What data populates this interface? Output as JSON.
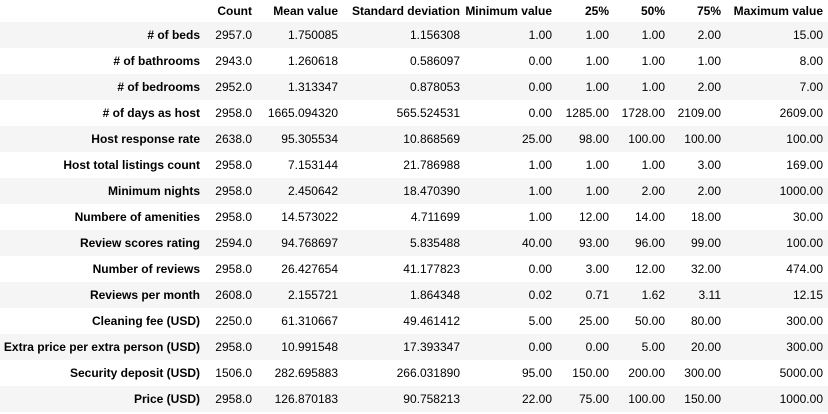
{
  "table": {
    "index_header": "",
    "columns": [
      "Count",
      "Mean value",
      "Standard deviation",
      "Minimum value",
      "25%",
      "50%",
      "75%",
      "Maximum value"
    ],
    "rows": [
      {
        "label": "# of beds",
        "cells": [
          "2957.0",
          "1.750085",
          "1.156308",
          "1.00",
          "1.00",
          "1.00",
          "2.00",
          "15.00"
        ]
      },
      {
        "label": "# of bathrooms",
        "cells": [
          "2943.0",
          "1.260618",
          "0.586097",
          "0.00",
          "1.00",
          "1.00",
          "1.00",
          "8.00"
        ]
      },
      {
        "label": "# of bedrooms",
        "cells": [
          "2952.0",
          "1.313347",
          "0.878053",
          "0.00",
          "1.00",
          "1.00",
          "2.00",
          "7.00"
        ]
      },
      {
        "label": "# of days as host",
        "cells": [
          "2958.0",
          "1665.094320",
          "565.524531",
          "0.00",
          "1285.00",
          "1728.00",
          "2109.00",
          "2609.00"
        ]
      },
      {
        "label": "Host response rate",
        "cells": [
          "2638.0",
          "95.305534",
          "10.868569",
          "25.00",
          "98.00",
          "100.00",
          "100.00",
          "100.00"
        ]
      },
      {
        "label": "Host total listings count",
        "cells": [
          "2958.0",
          "7.153144",
          "21.786988",
          "1.00",
          "1.00",
          "1.00",
          "3.00",
          "169.00"
        ]
      },
      {
        "label": "Minimum nights",
        "cells": [
          "2958.0",
          "2.450642",
          "18.470390",
          "1.00",
          "1.00",
          "2.00",
          "2.00",
          "1000.00"
        ]
      },
      {
        "label": "Numbere of amenities",
        "cells": [
          "2958.0",
          "14.573022",
          "4.711699",
          "1.00",
          "12.00",
          "14.00",
          "18.00",
          "30.00"
        ]
      },
      {
        "label": "Review scores rating",
        "cells": [
          "2594.0",
          "94.768697",
          "5.835488",
          "40.00",
          "93.00",
          "96.00",
          "99.00",
          "100.00"
        ]
      },
      {
        "label": "Number of reviews",
        "cells": [
          "2958.0",
          "26.427654",
          "41.177823",
          "0.00",
          "3.00",
          "12.00",
          "32.00",
          "474.00"
        ]
      },
      {
        "label": "Reviews per month",
        "cells": [
          "2608.0",
          "2.155721",
          "1.864348",
          "0.02",
          "0.71",
          "1.62",
          "3.11",
          "12.15"
        ]
      },
      {
        "label": "Cleaning fee (USD)",
        "cells": [
          "2250.0",
          "61.310667",
          "49.461412",
          "5.00",
          "25.00",
          "50.00",
          "80.00",
          "300.00"
        ]
      },
      {
        "label": "Extra price per extra person (USD)",
        "cells": [
          "2958.0",
          "10.991548",
          "17.393347",
          "0.00",
          "0.00",
          "5.00",
          "20.00",
          "300.00"
        ]
      },
      {
        "label": "Security deposit (USD)",
        "cells": [
          "1506.0",
          "282.695883",
          "266.031890",
          "95.00",
          "150.00",
          "200.00",
          "300.00",
          "5000.00"
        ]
      },
      {
        "label": "Price (USD)",
        "cells": [
          "2958.0",
          "126.870183",
          "90.758213",
          "22.00",
          "75.00",
          "100.00",
          "150.00",
          "1000.00"
        ]
      }
    ]
  }
}
